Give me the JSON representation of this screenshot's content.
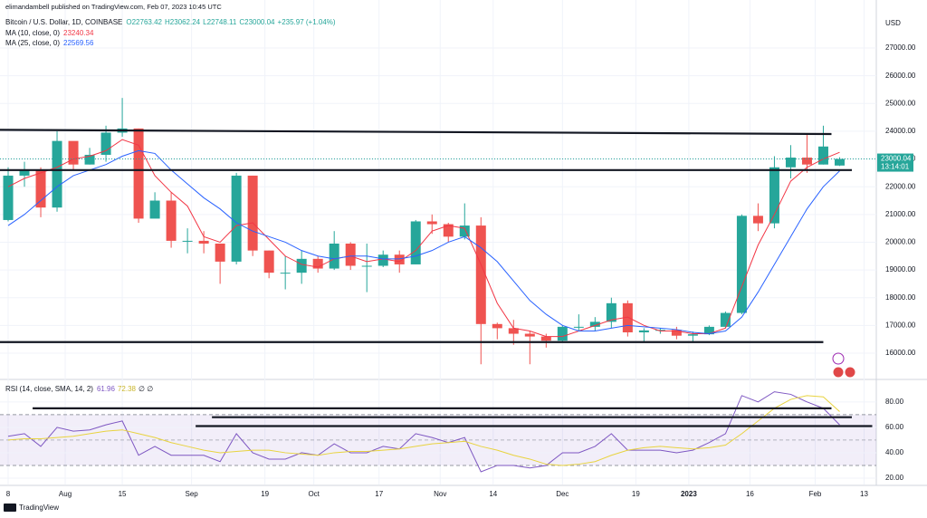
{
  "chart_data": {
    "type": "candlestick",
    "published": "elimandambell published on TradingView.com, Feb 07, 2023 10:45 UTC",
    "symbol": "Bitcoin / U.S. Dollar, 1D, COINBASE",
    "ohlc_legend": [
      "O22763.42",
      "H23062.24",
      "L22748.11",
      "C23000.04",
      "+235.97 (+1.04%)"
    ],
    "currency": "USD",
    "countdown": "13:14:01",
    "footer": "TradingView",
    "up_color": "#26a69a",
    "down_color": "#ef5350",
    "xlim": [
      "2022-07-16",
      "2023-02-16"
    ],
    "xticks": [
      {
        "value": "2022-07-18",
        "label": "8"
      },
      {
        "value": "2022-08-01",
        "label": "Aug"
      },
      {
        "value": "2022-08-15",
        "label": "15"
      },
      {
        "value": "2022-09-01",
        "label": "Sep"
      },
      {
        "value": "2022-09-19",
        "label": "19"
      },
      {
        "value": "2022-10-01",
        "label": "Oct"
      },
      {
        "value": "2022-10-17",
        "label": "17"
      },
      {
        "value": "2022-11-01",
        "label": "Nov"
      },
      {
        "value": "2022-11-14",
        "label": "14"
      },
      {
        "value": "2022-12-01",
        "label": "Dec"
      },
      {
        "value": "2022-12-19",
        "label": "19"
      },
      {
        "value": "2023-01-01",
        "label": "2023"
      },
      {
        "value": "2023-01-16",
        "label": "16"
      },
      {
        "value": "2023-02-01",
        "label": "Feb"
      },
      {
        "value": "2023-02-13",
        "label": "13"
      }
    ],
    "ylim": [
      15085,
      28405
    ],
    "yticks": [
      {
        "value": 16000,
        "label": "16000.00"
      },
      {
        "value": 17000,
        "label": "17000.00"
      },
      {
        "value": 18000,
        "label": "18000.00"
      },
      {
        "value": 19000,
        "label": "19000.00"
      },
      {
        "value": 20000,
        "label": "20000.00"
      },
      {
        "value": 21000,
        "label": "21000.00"
      },
      {
        "value": 22000,
        "label": "22000.00"
      },
      {
        "value": 23000,
        "label": "23000.00"
      },
      {
        "value": 24000,
        "label": "24000.00"
      },
      {
        "value": 25000,
        "label": "25000.00"
      },
      {
        "value": 26000,
        "label": "26000.00"
      },
      {
        "value": 27000,
        "label": "27000.00"
      }
    ],
    "grid": true,
    "dates": [
      "2022-07-18",
      "2022-07-22",
      "2022-07-26",
      "2022-07-30",
      "2022-08-03",
      "2022-08-07",
      "2022-08-11",
      "2022-08-15",
      "2022-08-19",
      "2022-08-23",
      "2022-08-27",
      "2022-08-31",
      "2022-09-04",
      "2022-09-08",
      "2022-09-12",
      "2022-09-16",
      "2022-09-20",
      "2022-09-24",
      "2022-09-28",
      "2022-10-02",
      "2022-10-06",
      "2022-10-10",
      "2022-10-14",
      "2022-10-18",
      "2022-10-22",
      "2022-10-26",
      "2022-10-30",
      "2022-11-03",
      "2022-11-07",
      "2022-11-11",
      "2022-11-15",
      "2022-11-19",
      "2022-11-23",
      "2022-11-27",
      "2022-12-01",
      "2022-12-05",
      "2022-12-09",
      "2022-12-13",
      "2022-12-17",
      "2022-12-21",
      "2022-12-25",
      "2022-12-29",
      "2023-01-02",
      "2023-01-06",
      "2023-01-10",
      "2023-01-14",
      "2023-01-18",
      "2023-01-22",
      "2023-01-26",
      "2023-01-30",
      "2023-02-03",
      "2023-02-07"
    ],
    "open": [
      20800,
      22400,
      22600,
      21250,
      23650,
      22800,
      23150,
      23950,
      24100,
      20850,
      21500,
      20050,
      20050,
      19950,
      19300,
      22400,
      19700,
      18900,
      18900,
      19400,
      19050,
      19950,
      19150,
      19150,
      19550,
      19200,
      20750,
      20650,
      20200,
      20600,
      17050,
      16900,
      16700,
      16600,
      16450,
      16950,
      16950,
      17130,
      17800,
      16750,
      16820,
      16840,
      16630,
      16680,
      16950,
      17450,
      20950,
      20680,
      22700,
      23050,
      22800,
      22763.42
    ],
    "high": [
      22700,
      22900,
      22700,
      24000,
      23600,
      23400,
      24200,
      25200,
      24100,
      21800,
      21800,
      20500,
      20400,
      19950,
      22500,
      22400,
      19700,
      19500,
      19700,
      19500,
      20400,
      20000,
      19950,
      19700,
      19700,
      20800,
      21000,
      20700,
      21400,
      20900,
      17100,
      17200,
      16800,
      16700,
      17000,
      17400,
      17300,
      18000,
      17900,
      16900,
      16900,
      16950,
      16780,
      17000,
      17500,
      21000,
      21400,
      23100,
      23500,
      23900,
      24200,
      23062.24
    ],
    "low": [
      20750,
      22000,
      20900,
      21100,
      22600,
      22800,
      22900,
      23800,
      20700,
      20900,
      19800,
      19600,
      19600,
      18500,
      19200,
      19500,
      18700,
      18300,
      18500,
      18900,
      19000,
      19000,
      18200,
      19100,
      18900,
      19200,
      20300,
      20000,
      20100,
      15600,
      16500,
      16300,
      15600,
      16200,
      16400,
      16800,
      16800,
      16900,
      16600,
      16400,
      16700,
      16500,
      16400,
      16650,
      16900,
      17400,
      20400,
      20500,
      22300,
      22500,
      22800,
      22748.11
    ],
    "close": [
      22400,
      22600,
      21250,
      23650,
      22800,
      23150,
      23950,
      24100,
      20850,
      21500,
      20050,
      20050,
      19950,
      19300,
      22400,
      19700,
      18900,
      18900,
      19400,
      19050,
      19950,
      19150,
      19150,
      19550,
      19200,
      20750,
      20650,
      20200,
      20600,
      17050,
      16900,
      16700,
      16600,
      16450,
      16950,
      16950,
      17130,
      17800,
      16750,
      16820,
      16840,
      16630,
      16680,
      16950,
      17450,
      20950,
      20680,
      22700,
      23050,
      22800,
      23450,
      23000.04
    ],
    "series": [
      {
        "name": "MA (10, close, 0)",
        "color": "#f23645",
        "values": [
          22000,
          22300,
          22500,
          22700,
          23000,
          23100,
          23300,
          23700,
          23500,
          22400,
          21800,
          21300,
          20200,
          20000,
          20600,
          20700,
          20100,
          19500,
          19200,
          19100,
          19400,
          19500,
          19300,
          19400,
          19300,
          19700,
          20400,
          20600,
          20500,
          19200,
          17800,
          16900,
          16800,
          16600,
          16600,
          16800,
          17000,
          17200,
          17300,
          17000,
          16800,
          16800,
          16700,
          16700,
          16900,
          18400,
          19900,
          21000,
          22200,
          22700,
          23000,
          23240.34
        ]
      },
      {
        "name": "MA (25, close, 0)",
        "color": "#2962ff",
        "values": [
          20600,
          21000,
          21500,
          22000,
          22400,
          22600,
          22800,
          23100,
          23300,
          23200,
          22600,
          22100,
          21600,
          21200,
          20700,
          20400,
          20200,
          20000,
          19700,
          19500,
          19400,
          19500,
          19500,
          19400,
          19400,
          19500,
          19700,
          20000,
          20200,
          19800,
          19300,
          18600,
          17900,
          17400,
          17000,
          16800,
          16800,
          16900,
          17000,
          16950,
          16900,
          16850,
          16750,
          16700,
          16800,
          17300,
          18200,
          19200,
          20200,
          21200,
          22000,
          22569.56
        ]
      }
    ],
    "drawings": [
      {
        "from": "2022-07-16",
        "to": "2023-02-05",
        "values": [
          24050,
          23900
        ]
      },
      {
        "from": "2022-07-16",
        "to": "2023-02-10",
        "values": [
          22600,
          22600
        ]
      },
      {
        "from": "2022-07-16",
        "to": "2023-02-03",
        "values": [
          16400,
          16400
        ]
      }
    ],
    "rsi": {
      "title": "RSI (14, close, SMA, 14, 2)",
      "na": "∅ ∅",
      "ylim": [
        15,
        97
      ],
      "yticks": [
        {
          "value": 20,
          "label": "20.00"
        },
        {
          "value": 40,
          "label": "40.00"
        },
        {
          "value": 60,
          "label": "60.00"
        },
        {
          "value": 80,
          "label": "80.00"
        }
      ],
      "band": [
        30,
        70
      ],
      "mid": 50,
      "band_color": "#7e57c2",
      "series": [
        {
          "color": "#7e57c2",
          "values": [
            53,
            55,
            45,
            60,
            57,
            58,
            62,
            65,
            38,
            45,
            38,
            38,
            38,
            33,
            55,
            40,
            35,
            35,
            40,
            38,
            47,
            40,
            40,
            45,
            43,
            55,
            52,
            48,
            52,
            25,
            30,
            30,
            28,
            30,
            40,
            40,
            45,
            55,
            42,
            42,
            42,
            40,
            42,
            48,
            55,
            85,
            80,
            88,
            86,
            80,
            75,
            61.96
          ]
        },
        {
          "color": "#e8d33f",
          "values": [
            50,
            51,
            51,
            52,
            53,
            55,
            57,
            58,
            55,
            52,
            48,
            45,
            42,
            40,
            41,
            42,
            42,
            40,
            39,
            38,
            40,
            41,
            41,
            42,
            43,
            45,
            47,
            48,
            49,
            45,
            42,
            38,
            35,
            31,
            30,
            31,
            33,
            38,
            42,
            44,
            45,
            44,
            43,
            44,
            46,
            55,
            65,
            75,
            82,
            85,
            84,
            72.38
          ]
        }
      ],
      "drawings": [
        {
          "from": "2022-07-24",
          "to": "2023-02-05",
          "values": [
            75,
            75
          ]
        },
        {
          "from": "2022-09-06",
          "to": "2023-02-10",
          "values": [
            68,
            68
          ]
        },
        {
          "from": "2022-09-02",
          "to": "2023-02-15",
          "values": [
            61,
            61
          ]
        }
      ]
    }
  }
}
